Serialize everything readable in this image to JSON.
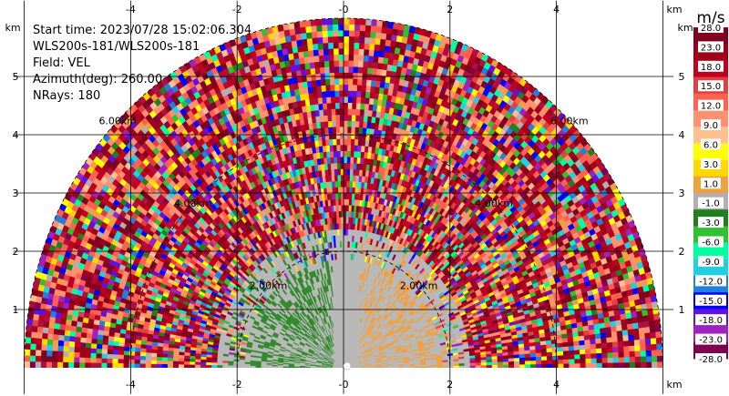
{
  "chart_data": {
    "type": "heatmap",
    "subtype": "radar-ppi-sector",
    "info": {
      "start_time": "Start time: 2023/07/28 15:02:06.304",
      "instrument": "WLS200s-181/WLS200s-181",
      "field": "Field: VEL",
      "azimuth": "Azimuth(deg): 260.00",
      "nrays": "NRays: 180"
    },
    "x_unit": "km",
    "y_unit": "km",
    "xlim": [
      -6,
      6
    ],
    "ylim": [
      0,
      6
    ],
    "x_ticks": [
      -4,
      -2,
      0,
      2,
      4
    ],
    "x_tick_labels": [
      "-4",
      "-2",
      "-0",
      "2",
      "4"
    ],
    "y_ticks": [
      1,
      2,
      3,
      4,
      5
    ],
    "y_tick_labels": [
      "1",
      "2",
      "3",
      "4",
      "5"
    ],
    "max_range_km": 6,
    "range_rings": [
      {
        "radius_km": 2,
        "label": "2.00km"
      },
      {
        "radius_km": 4,
        "label": "4.00km"
      },
      {
        "radius_km": 6,
        "label": "6.00km"
      }
    ],
    "colorbar": {
      "unit": "m/s",
      "tick_labels": [
        "28.0",
        "23.0",
        "18.0",
        "15.0",
        "12.0",
        "9.0",
        "6.0",
        "3.0",
        "1.0",
        "-1.0",
        "-3.0",
        "-6.0",
        "-9.0",
        "-12.0",
        "-15.0",
        "-18.0",
        "-23.0",
        "-28.0"
      ],
      "colors": [
        "#800020",
        "#a0001a",
        "#c00020",
        "#e04040",
        "#ff6050",
        "#ff9070",
        "#ffc090",
        "#ffff00",
        "#ffd800",
        "#f0a040",
        "#b0b0b0",
        "#208020",
        "#30c030",
        "#00ff9f",
        "#20d0e0",
        "#2080e0",
        "#0000ff",
        "#6010e0",
        "#a020c0",
        "#800050"
      ]
    },
    "near_field": {
      "gray_radius_km": 2.4,
      "green_region": "left",
      "orange_region": "right"
    }
  }
}
